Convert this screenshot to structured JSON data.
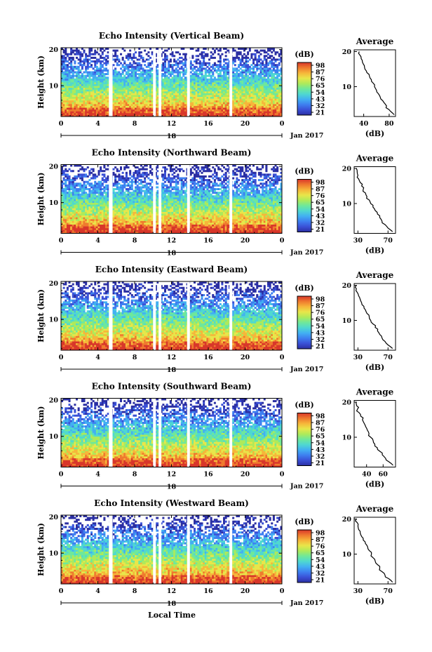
{
  "colors": {
    "colormap": [
      "#2b2fa3",
      "#3a50d6",
      "#3e7ff0",
      "#42b0f2",
      "#4fd8d0",
      "#6fe89a",
      "#aeea5a",
      "#e8e64a",
      "#f6b63a",
      "#ef7a2e",
      "#d8372a"
    ],
    "profile_line": "#000000",
    "axis": "#000000",
    "gap": "#ffffff"
  },
  "chart_data": [
    {
      "type": "heatmap",
      "title": "Echo Intensity (Vertical Beam)",
      "ylabel": "Height (km)",
      "x_ticks": [
        "0",
        "4",
        "8",
        "12",
        "16",
        "20",
        "0"
      ],
      "date_marker": "18",
      "date_label": "Jan 2017",
      "xlim": [
        0,
        24
      ],
      "ylim": [
        1.5,
        20.5
      ],
      "y_ticks": [
        "20",
        "10"
      ],
      "gaps_local_time": [
        [
          5.2,
          5.6
        ],
        [
          10.0,
          10.3
        ],
        [
          10.6,
          10.9
        ],
        [
          13.7,
          14.0
        ],
        [
          18.3,
          18.6
        ]
      ],
      "colorbar": {
        "unit": "(dB)",
        "ticks": [
          "98",
          "87",
          "76",
          "65",
          "54",
          "43",
          "32",
          "21"
        ],
        "range": [
          21,
          98
        ]
      },
      "profile": {
        "title": "Average",
        "xlabel": "(dB)",
        "x_ticks": [
          "40",
          "80"
        ],
        "x_tick_values": [
          40,
          80
        ],
        "xlim": [
          25,
          90
        ],
        "heights_km": [
          2,
          3,
          4,
          5,
          6,
          7,
          8,
          9,
          10,
          11,
          12,
          13,
          14,
          15,
          16,
          17,
          18,
          19,
          20
        ],
        "values_db": [
          88,
          82,
          75,
          74,
          70,
          66,
          63,
          60,
          57,
          55,
          52,
          49,
          45,
          42,
          41,
          38,
          36,
          34,
          33
        ]
      }
    },
    {
      "type": "heatmap",
      "title": "Echo Intensity (Northward Beam)",
      "ylabel": "Height (km)",
      "x_ticks": [
        "0",
        "4",
        "8",
        "12",
        "16",
        "20",
        "0"
      ],
      "date_marker": "18",
      "date_label": "Jan 2017",
      "xlim": [
        0,
        24
      ],
      "ylim": [
        1.5,
        20.5
      ],
      "y_ticks": [
        "20",
        "10"
      ],
      "gaps_local_time": [
        [
          5.2,
          5.6
        ],
        [
          10.0,
          10.3
        ],
        [
          10.6,
          10.9
        ],
        [
          13.7,
          14.0
        ],
        [
          18.3,
          18.6
        ]
      ],
      "colorbar": {
        "unit": "(dB)",
        "ticks": [
          "98",
          "87",
          "76",
          "65",
          "54",
          "43",
          "32",
          "21"
        ],
        "range": [
          21,
          98
        ]
      },
      "profile": {
        "title": "Average",
        "xlabel": "(dB)",
        "x_ticks": [
          "30",
          "70"
        ],
        "x_tick_values": [
          30,
          70
        ],
        "xlim": [
          25,
          80
        ],
        "heights_km": [
          2,
          3,
          4,
          5,
          6,
          7,
          8,
          9,
          10,
          11,
          12,
          13,
          14,
          15,
          16,
          17,
          18,
          19,
          20
        ],
        "values_db": [
          76,
          70,
          66,
          62,
          59,
          56,
          53,
          50,
          47,
          45,
          42,
          40,
          37,
          35,
          33,
          31,
          30,
          29,
          28
        ]
      }
    },
    {
      "type": "heatmap",
      "title": "Echo Intensity (Eastward Beam)",
      "ylabel": "Height (km)",
      "x_ticks": [
        "0",
        "4",
        "8",
        "12",
        "16",
        "20",
        "0"
      ],
      "date_marker": "18",
      "date_label": "Jan 2017",
      "xlim": [
        0,
        24
      ],
      "ylim": [
        1.5,
        20.5
      ],
      "y_ticks": [
        "20",
        "10"
      ],
      "gaps_local_time": [
        [
          5.2,
          5.6
        ],
        [
          10.0,
          10.3
        ],
        [
          10.6,
          10.9
        ],
        [
          13.7,
          14.0
        ],
        [
          18.3,
          18.6
        ]
      ],
      "colorbar": {
        "unit": "(dB)",
        "ticks": [
          "98",
          "87",
          "76",
          "65",
          "54",
          "43",
          "32",
          "21"
        ],
        "range": [
          21,
          98
        ]
      },
      "profile": {
        "title": "Average",
        "xlabel": "(dB)",
        "x_ticks": [
          "30",
          "70"
        ],
        "x_tick_values": [
          30,
          70
        ],
        "xlim": [
          25,
          80
        ],
        "heights_km": [
          2,
          3,
          4,
          5,
          6,
          7,
          8,
          9,
          10,
          11,
          12,
          13,
          14,
          15,
          16,
          17,
          18,
          19,
          20
        ],
        "values_db": [
          76,
          70,
          66,
          62,
          59,
          56,
          53,
          50,
          47,
          45,
          42,
          40,
          38,
          35,
          33,
          31,
          29,
          28,
          28
        ]
      }
    },
    {
      "type": "heatmap",
      "title": "Echo Intensity (Southward Beam)",
      "ylabel": "Height (km)",
      "x_ticks": [
        "0",
        "4",
        "8",
        "12",
        "16",
        "20",
        "0"
      ],
      "date_marker": "18",
      "date_label": "Jan 2017",
      "xlim": [
        0,
        24
      ],
      "ylim": [
        1.5,
        20.5
      ],
      "y_ticks": [
        "20",
        "10"
      ],
      "gaps_local_time": [
        [
          5.2,
          5.6
        ],
        [
          10.0,
          10.3
        ],
        [
          10.6,
          10.9
        ],
        [
          13.7,
          14.0
        ],
        [
          18.3,
          18.6
        ]
      ],
      "colorbar": {
        "unit": "(dB)",
        "ticks": [
          "98",
          "87",
          "76",
          "65",
          "54",
          "43",
          "32",
          "21"
        ],
        "range": [
          21,
          98
        ]
      },
      "profile": {
        "title": "Average",
        "xlabel": "(dB)",
        "x_ticks": [
          "40",
          "60"
        ],
        "x_tick_values": [
          40,
          60
        ],
        "xlim": [
          25,
          75
        ],
        "heights_km": [
          2,
          3,
          4,
          5,
          6,
          7,
          8,
          9,
          10,
          11,
          12,
          13,
          14,
          15,
          16,
          17,
          18,
          19,
          20
        ],
        "values_db": [
          72,
          67,
          63,
          59,
          56,
          53,
          50,
          48,
          45,
          43,
          41,
          39,
          37,
          35,
          33,
          31,
          29,
          28,
          27
        ]
      }
    },
    {
      "type": "heatmap",
      "title": "Echo Intensity (Westward Beam)",
      "ylabel": "Height (km)",
      "x_ticks": [
        "0",
        "4",
        "8",
        "12",
        "16",
        "20",
        "0"
      ],
      "date_marker": "18",
      "date_label": "Jan 2017",
      "xlim": [
        0,
        24
      ],
      "ylim": [
        1.5,
        20.5
      ],
      "y_ticks": [
        "20",
        "10"
      ],
      "gaps_local_time": [
        [
          5.2,
          5.6
        ],
        [
          10.0,
          10.3
        ],
        [
          10.6,
          10.9
        ],
        [
          13.7,
          14.0
        ],
        [
          18.3,
          18.6
        ]
      ],
      "colorbar": {
        "unit": "(dB)",
        "ticks": [
          "98",
          "87",
          "76",
          "65",
          "54",
          "43",
          "32",
          "21"
        ],
        "range": [
          21,
          98
        ]
      },
      "profile": {
        "title": "Average",
        "xlabel": "(dB)",
        "x_ticks": [
          "30",
          "70"
        ],
        "x_tick_values": [
          30,
          70
        ],
        "xlim": [
          25,
          80
        ],
        "heights_km": [
          2,
          3,
          4,
          5,
          6,
          7,
          8,
          9,
          10,
          11,
          12,
          13,
          14,
          15,
          16,
          17,
          18,
          19,
          20
        ],
        "values_db": [
          76,
          71,
          66,
          62,
          59,
          56,
          53,
          50,
          48,
          45,
          43,
          40,
          37,
          35,
          33,
          31,
          30,
          29,
          28
        ]
      }
    }
  ],
  "footer": {
    "xlabel": "Local Time"
  }
}
